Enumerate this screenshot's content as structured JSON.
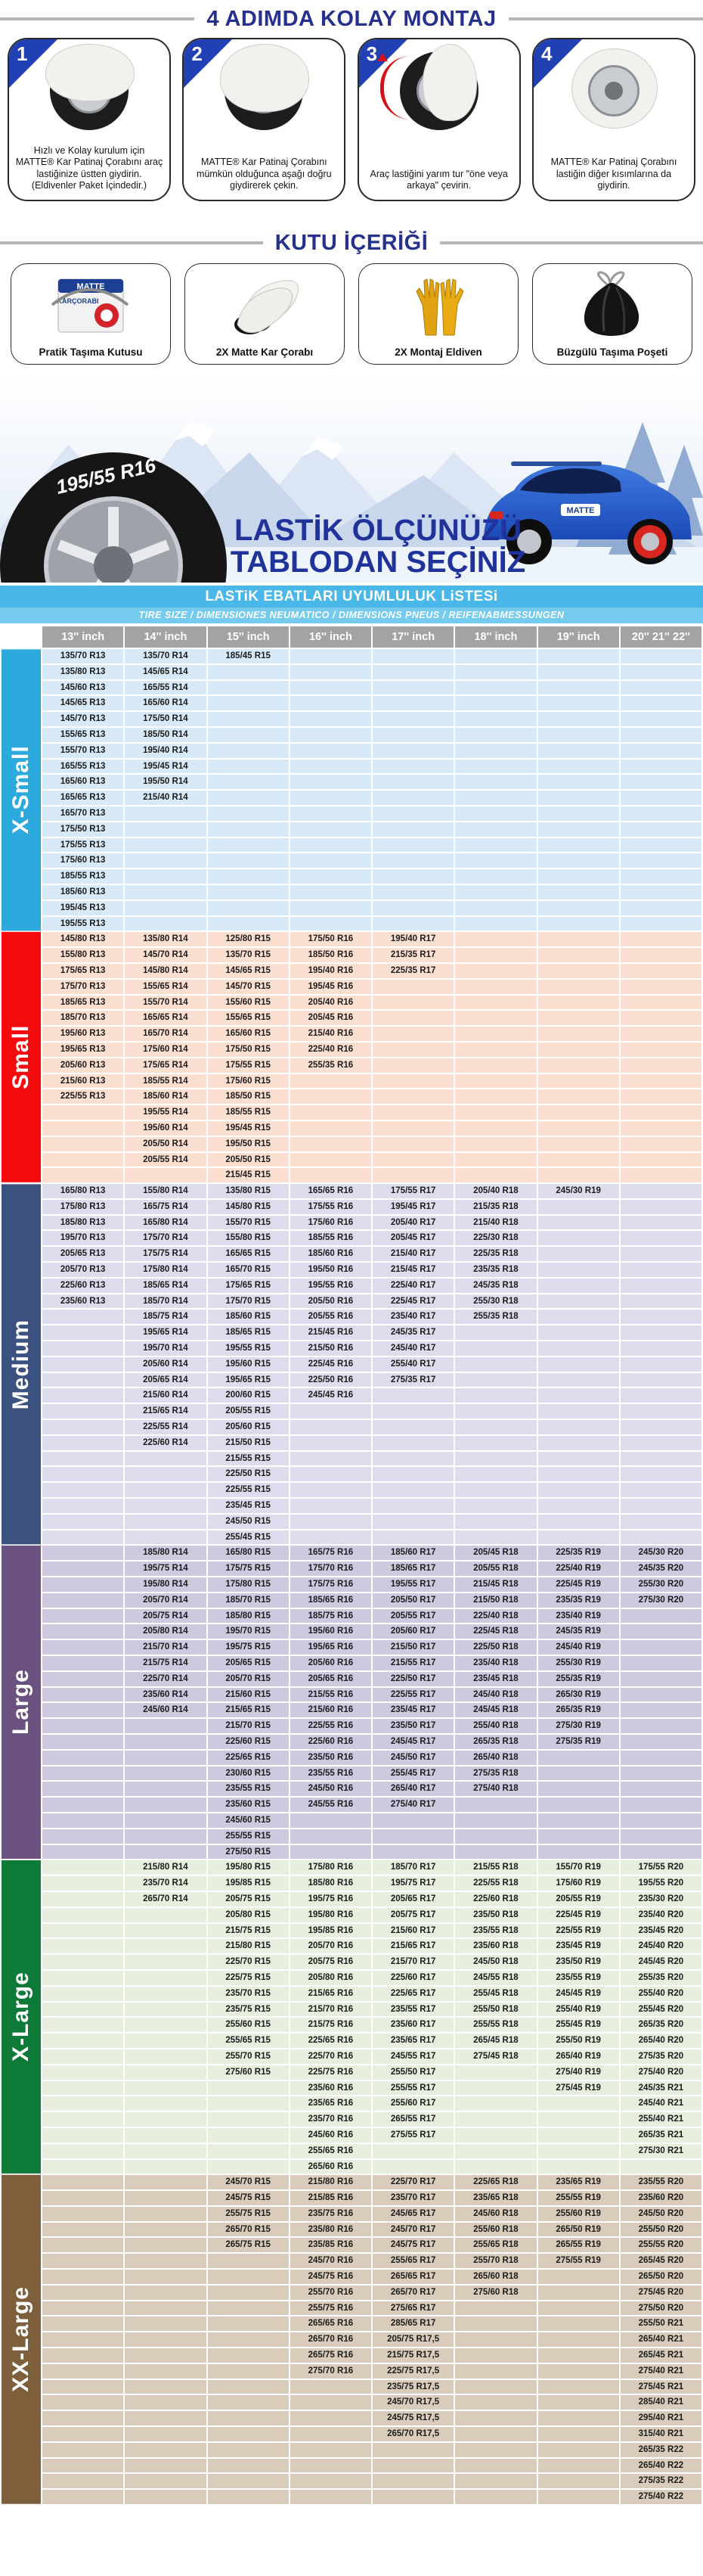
{
  "steps_section": {
    "title": "4 ADIMDA KOLAY MONTAJ",
    "steps": [
      {
        "number": "1",
        "caption": "Hızlı ve Kolay kurulum için MATTE® Kar Patinaj  Çorabını araç lastiğinize üstten giydirin. (Eldivenler Paket İçindedir.)"
      },
      {
        "number": "2",
        "caption": "MATTE® Kar Patinaj Çorabını mümkün olduğunca aşağı doğru giydirerek çekin."
      },
      {
        "number": "3",
        "caption": "Araç lastiğini yarım tur \"öne veya arkaya\" çevirin."
      },
      {
        "number": "4",
        "caption": "MATTE® Kar Patinaj Çorabını lastiğin diğer kısımlarına da giydirin."
      }
    ]
  },
  "box_section": {
    "title": "KUTU İÇERİĞİ",
    "box_logo": "MATTE",
    "box_logo2": "KARÇORABI",
    "items": [
      {
        "caption": "Pratik Taşıma Kutusu",
        "icon": "product-box-icon"
      },
      {
        "caption": "2X Matte Kar Çorabı",
        "icon": "snow-socks-icon"
      },
      {
        "caption": "2X Montaj Eldiven",
        "icon": "gloves-icon"
      },
      {
        "caption": "Büzgülü Taşıma Poşeti",
        "icon": "drawstring-bag-icon"
      }
    ]
  },
  "banner": {
    "tire_label": "195/55 R16",
    "headline_line1": "LASTİK ÖLÇÜNÜZÜ",
    "headline_line2": "TABLODAN SEÇİNİZ",
    "car_logo": "MATTE"
  },
  "table": {
    "title": "LASTiK EBATLARI UYUMLULUK LiSTESi",
    "subtitle": "TIRE SIZE   /   DIMENSIONES NEUMATICO   /   DIMENSIONS PNEUS   /   REIFENABMESSUNGEN",
    "columns": [
      "13'' inch",
      "14'' inch",
      "15'' inch",
      "16'' inch",
      "17'' inch",
      "18'' inch",
      "19'' inch",
      "20'' 21'' 22''"
    ],
    "sections": [
      {
        "name": "X-Small",
        "band_color": "#2ca9dd",
        "row_color": "#d8eaf7",
        "rows": 18,
        "cols": [
          [
            "135/70 R13",
            "135/80 R13",
            "145/60 R13",
            "145/65 R13",
            "145/70 R13",
            "155/65 R13",
            "155/70 R13",
            "165/55 R13",
            "165/60 R13",
            "165/65 R13",
            "165/70 R13",
            "175/50 R13",
            "175/55 R13",
            "175/60 R13",
            "185/55 R13",
            "185/60 R13",
            "195/45 R13",
            "195/55 R13"
          ],
          [
            "135/70 R14",
            "145/65 R14",
            "165/55 R14",
            "165/60 R14",
            "175/50 R14",
            "185/50 R14",
            "195/40 R14",
            "195/45 R14",
            "195/50 R14",
            "215/40 R14"
          ],
          [
            "185/45 R15"
          ],
          [],
          [],
          [],
          [],
          []
        ]
      },
      {
        "name": "Small",
        "band_color": "#f40b0e",
        "row_color": "#fbdfd1",
        "rows": 16,
        "cols": [
          [
            "145/80 R13",
            "155/80 R13",
            "175/65 R13",
            "175/70 R13",
            "185/65 R13",
            "185/70 R13",
            "195/60 R13",
            "195/65 R13",
            "205/60 R13",
            "215/60 R13",
            "225/55 R13"
          ],
          [
            "135/80 R14",
            "145/70 R14",
            "145/80 R14",
            "155/65 R14",
            "155/70 R14",
            "165/65 R14",
            "165/70 R14",
            "175/60 R14",
            "175/65 R14",
            "185/55 R14",
            "185/60 R14",
            "195/55 R14",
            "195/60 R14",
            "205/50 R14",
            "205/55 R14"
          ],
          [
            "125/80 R15",
            "135/70 R15",
            "145/65 R15",
            "145/70 R15",
            "155/60 R15",
            "155/65 R15",
            "165/60 R15",
            "175/50 R15",
            "175/55 R15",
            "175/60 R15",
            "185/50 R15",
            "185/55 R15",
            "195/45 R15",
            "195/50 R15",
            "205/50 R15",
            "215/45 R15"
          ],
          [
            "175/50 R16",
            "185/50 R16",
            "195/40 R16",
            "195/45 R16",
            "205/40 R16",
            "205/45 R16",
            "215/40 R16",
            "225/40 R16",
            "255/35 R16"
          ],
          [
            "195/40 R17",
            "215/35 R17",
            "225/35 R17"
          ],
          [],
          [],
          []
        ]
      },
      {
        "name": "Medium",
        "band_color": "#3b5180",
        "row_color": "#dcdcec",
        "rows": 23,
        "cols": [
          [
            "165/80 R13",
            "175/80 R13",
            "185/80 R13",
            "195/70 R13",
            "205/65 R13",
            "205/70 R13",
            "225/60 R13",
            "235/60 R13"
          ],
          [
            "155/80 R14",
            "165/75 R14",
            "165/80 R14",
            "175/70 R14",
            "175/75 R14",
            "175/80 R14",
            "185/65 R14",
            "185/70 R14",
            "185/75 R14",
            "195/65 R14",
            "195/70 R14",
            "205/60 R14",
            "205/65 R14",
            "215/60 R14",
            "215/65 R14",
            "225/55 R14",
            "225/60 R14"
          ],
          [
            "135/80 R15",
            "145/80 R15",
            "155/70 R15",
            "155/80 R15",
            "165/65 R15",
            "165/70 R15",
            "175/65 R15",
            "175/70 R15",
            "185/60 R15",
            "185/65 R15",
            "195/55 R15",
            "195/60 R15",
            "195/65 R15",
            "200/60 R15",
            "205/55 R15",
            "205/60 R15",
            "215/50 R15",
            "215/55 R15",
            "225/50 R15",
            "225/55 R15",
            "235/45 R15",
            "245/50 R15",
            "255/45 R15"
          ],
          [
            "165/65 R16",
            "175/55 R16",
            "175/60 R16",
            "185/55 R16",
            "185/60 R16",
            "195/50 R16",
            "195/55 R16",
            "205/50 R16",
            "205/55 R16",
            "215/45 R16",
            "215/50 R16",
            "225/45 R16",
            "225/50 R16",
            "245/45 R16"
          ],
          [
            "175/55 R17",
            "195/45 R17",
            "205/40 R17",
            "205/45 R17",
            "215/40 R17",
            "215/45 R17",
            "225/40 R17",
            "225/45 R17",
            "235/40 R17",
            "245/35 R17",
            "245/40 R17",
            "255/40 R17",
            "275/35 R17"
          ],
          [
            "205/40 R18",
            "215/35 R18",
            "215/40 R18",
            "225/30 R18",
            "225/35 R18",
            "235/35 R18",
            "245/35 R18",
            "255/30 R18",
            "255/35 R18"
          ],
          [
            "245/30 R19"
          ],
          []
        ]
      },
      {
        "name": "Large",
        "band_color": "#6a517f",
        "row_color": "#cfc9df",
        "rows": 20,
        "cols": [
          [],
          [
            "185/80 R14",
            "195/75 R14",
            "195/80 R14",
            "205/70 R14",
            "205/75 R14",
            "205/80 R14",
            "215/70 R14",
            "215/75 R14",
            "225/70 R14",
            "235/60 R14",
            "245/60 R14"
          ],
          [
            "165/80 R15",
            "175/75 R15",
            "175/80 R15",
            "185/70 R15",
            "185/80 R15",
            "195/70 R15",
            "195/75 R15",
            "205/65 R15",
            "205/70 R15",
            "215/60 R15",
            "215/65 R15",
            "215/70 R15",
            "225/60 R15",
            "225/65 R15",
            "230/60 R15",
            "235/55 R15",
            "235/60 R15",
            "245/60 R15",
            "255/55 R15",
            "275/50 R15"
          ],
          [
            "165/75 R16",
            "175/70 R16",
            "175/75 R16",
            "185/65 R16",
            "185/75 R16",
            "195/60 R16",
            "195/65 R16",
            "205/60 R16",
            "205/65 R16",
            "215/55 R16",
            "215/60 R16",
            "225/55 R16",
            "225/60 R16",
            "235/50 R16",
            "235/55 R16",
            "245/50 R16",
            "245/55 R16"
          ],
          [
            "185/60 R17",
            "185/65 R17",
            "195/55 R17",
            "205/50 R17",
            "205/55 R17",
            "205/60 R17",
            "215/50 R17",
            "215/55 R17",
            "225/50 R17",
            "225/55 R17",
            "235/45 R17",
            "235/50 R17",
            "245/45 R17",
            "245/50 R17",
            "255/45 R17",
            "265/40 R17",
            "275/40 R17"
          ],
          [
            "205/45 R18",
            "205/55 R18",
            "215/45 R18",
            "215/50 R18",
            "225/40 R18",
            "225/45 R18",
            "225/50 R18",
            "235/40 R18",
            "235/45 R18",
            "245/40 R18",
            "245/45 R18",
            "255/40 R18",
            "265/35 R18",
            "265/40 R18",
            "275/35 R18",
            "275/40 R18"
          ],
          [
            "225/35 R19",
            "225/40 R19",
            "225/45 R19",
            "235/35 R19",
            "235/40 R19",
            "245/35 R19",
            "245/40 R19",
            "255/30 R19",
            "255/35 R19",
            "265/30 R19",
            "265/35 R19",
            "275/30 R19",
            "275/35 R19"
          ],
          [
            "245/30 R20",
            "245/35 R20",
            "255/30 R20",
            "275/30 R20"
          ]
        ]
      },
      {
        "name": "X-Large",
        "band_color": "#0e7a38",
        "row_color": "#e6eedd",
        "rows": 20,
        "cols": [
          [],
          [
            "215/80 R14",
            "235/70 R14",
            "265/70 R14"
          ],
          [
            "195/80 R15",
            "195/85 R15",
            "205/75 R15",
            "205/80 R15",
            "215/75 R15",
            "215/80 R15",
            "225/70 R15",
            "225/75 R15",
            "235/70 R15",
            "235/75 R15",
            "255/60 R15",
            "255/65 R15",
            "255/70 R15",
            "275/60 R15"
          ],
          [
            "175/80 R16",
            "185/80 R16",
            "195/75 R16",
            "195/80 R16",
            "195/85 R16",
            "205/70 R16",
            "205/75 R16",
            "205/80 R16",
            "215/65 R16",
            "215/70 R16",
            "215/75 R16",
            "225/65 R16",
            "225/70 R16",
            "225/75 R16",
            "235/60 R16",
            "235/65 R16",
            "235/70 R16",
            "245/60 R16",
            "255/65 R16",
            "265/60 R16"
          ],
          [
            "185/70 R17",
            "195/75 R17",
            "205/65 R17",
            "205/75 R17",
            "215/60 R17",
            "215/65 R17",
            "215/70 R17",
            "225/60 R17",
            "225/65 R17",
            "235/55 R17",
            "235/60 R17",
            "235/65 R17",
            "245/55 R17",
            "255/50 R17",
            "255/55 R17",
            "255/60 R17",
            "265/55 R17",
            "275/55 R17"
          ],
          [
            "215/55 R18",
            "225/55 R18",
            "225/60 R18",
            "235/50 R18",
            "235/55 R18",
            "235/60 R18",
            "245/50 R18",
            "245/55 R18",
            "255/45 R18",
            "255/50 R18",
            "255/55 R18",
            "265/45 R18",
            "275/45 R18"
          ],
          [
            "155/70 R19",
            "175/60 R19",
            "205/55 R19",
            "225/45 R19",
            "225/55 R19",
            "235/45 R19",
            "235/50 R19",
            "235/55 R19",
            "245/45 R19",
            "255/40 R19",
            "255/45 R19",
            "255/50 R19",
            "265/40 R19",
            "275/40 R19",
            "275/45 R19"
          ],
          [
            "175/55 R20",
            "195/55 R20",
            "235/30 R20",
            "235/40 R20",
            "235/45 R20",
            "245/40 R20",
            "245/45 R20",
            "255/35 R20",
            "255/40 R20",
            "255/45 R20",
            "265/35 R20",
            "265/40 R20",
            "275/35 R20",
            "275/40 R20",
            "245/35 R21",
            "245/40 R21",
            "255/40 R21",
            "265/35 R21",
            "275/30 R21"
          ]
        ]
      },
      {
        "name": "XX-Large",
        "band_color": "#7d5f3c",
        "row_color": "#d9ccba",
        "rows": 21,
        "cols": [
          [],
          [],
          [
            "245/70 R15",
            "245/75 R15",
            "255/75 R15",
            "265/70 R15",
            "265/75 R15"
          ],
          [
            "215/80 R16",
            "215/85 R16",
            "235/75 R16",
            "235/80 R16",
            "235/85 R16",
            "245/70 R16",
            "245/75 R16",
            "255/70 R16",
            "255/75 R16",
            "265/65 R16",
            "265/70 R16",
            "265/75 R16",
            "275/70 R16"
          ],
          [
            "225/70 R17",
            "235/70 R17",
            "245/65 R17",
            "245/70 R17",
            "245/75 R17",
            "255/65 R17",
            "265/65 R17",
            "265/70 R17",
            "275/65 R17",
            "285/65 R17",
            "205/75 R17,5",
            "215/75 R17,5",
            "225/75 R17,5",
            "235/75 R17,5",
            "245/70 R17,5",
            "245/75 R17,5",
            "265/70 R17,5"
          ],
          [
            "225/65 R18",
            "235/65 R18",
            "245/60 R18",
            "255/60 R18",
            "255/65 R18",
            "255/70 R18",
            "265/60 R18",
            "275/60 R18"
          ],
          [
            "235/65 R19",
            "255/55 R19",
            "255/60 R19",
            "265/50 R19",
            "265/55 R19",
            "275/55 R19"
          ],
          [
            "235/55 R20",
            "235/60 R20",
            "245/50 R20",
            "255/50 R20",
            "255/55 R20",
            "265/45 R20",
            "265/50 R20",
            "275/45 R20",
            "275/50 R20",
            "255/50 R21",
            "265/40 R21",
            "265/45 R21",
            "275/40 R21",
            "275/45 R21",
            "285/40 R21",
            "295/40 R21",
            "315/40 R21",
            "265/35 R22",
            "265/40 R22",
            "275/35 R22",
            "275/40 R22"
          ]
        ]
      }
    ]
  }
}
